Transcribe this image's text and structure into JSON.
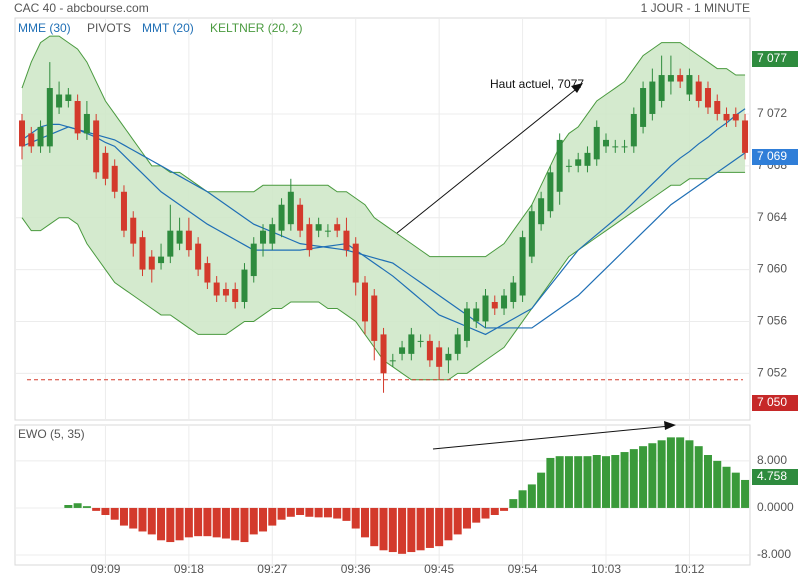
{
  "chart_data": [
    {
      "type": "candlestick",
      "title": "CAC 40 - abcbourse.com",
      "timeframe": "1 JOUR - 1 MINUTE",
      "pivots_label": "PIVOTS",
      "annotation": "Haut actuel, 7077",
      "high_badge": "7 077",
      "last_badge": "7 069",
      "low_badge": "7 050",
      "up_color": "#2e8b3e",
      "down_color": "#d33a2c",
      "categories": [
        null,
        null,
        null,
        null,
        null,
        null,
        null,
        null,
        null,
        "09:09",
        null,
        null,
        null,
        null,
        null,
        null,
        null,
        null,
        "09:18",
        null,
        null,
        null,
        null,
        null,
        null,
        null,
        null,
        "09:27",
        null,
        null,
        null,
        null,
        null,
        null,
        null,
        null,
        "09:36",
        null,
        null,
        null,
        null,
        null,
        null,
        null,
        null,
        "09:45",
        null,
        null,
        null,
        null,
        null,
        null,
        null,
        null,
        "09:54",
        null,
        null,
        null,
        null,
        null,
        null,
        null,
        null,
        "10:03",
        null,
        null,
        null,
        null,
        null,
        null,
        null,
        null,
        "10:12",
        null,
        null,
        null,
        null,
        null,
        null
      ],
      "open": [
        7071.5,
        7070.5,
        7069.5,
        7069.5,
        7072.5,
        7073,
        7073,
        7070.5,
        7071.5,
        7069,
        7068,
        7066,
        7064,
        7062.5,
        7061,
        7060.5,
        7061,
        7062,
        7063,
        7062,
        7060.5,
        7059,
        7058.5,
        7058.5,
        7057.5,
        7059.5,
        7062,
        7062,
        7063,
        7063.5,
        7065,
        7063.5,
        7063,
        7063,
        7063.5,
        7063,
        7062,
        7059,
        7058,
        7055,
        7053,
        7053.5,
        7053.5,
        7054.5,
        7054.5,
        7054,
        7053,
        7053.5,
        7054.5,
        7056,
        7056,
        7057.5,
        7057,
        7057.5,
        7058,
        7061,
        7063.5,
        7064.5,
        7066,
        7068,
        7068,
        7068,
        7068.5,
        7069.5,
        7069.5,
        7069.5,
        7069.5,
        7071,
        7072,
        7073,
        7074.5,
        7075,
        7073.5,
        7074.5,
        7074,
        7073,
        7072,
        7072,
        7071.5
      ],
      "high": [
        7072,
        7071,
        7071.5,
        7076,
        7074.5,
        7074,
        7073.5,
        7073,
        7072,
        7069.5,
        7068.5,
        7066.5,
        7064.5,
        7063,
        7061.5,
        7062,
        7065,
        7064,
        7064,
        7062.5,
        7061,
        7059.5,
        7059,
        7059,
        7060.5,
        7062.5,
        7063.5,
        7064,
        7065.5,
        7067,
        7065.5,
        7064,
        7064,
        7063.5,
        7064,
        7064,
        7062.5,
        7059.5,
        7058.5,
        7055.5,
        7053.5,
        7054.5,
        7055.5,
        7055,
        7055,
        7054.5,
        7054,
        7055.5,
        7057.5,
        7057.5,
        7058.5,
        7058,
        7058.5,
        7059.5,
        7063,
        7065,
        7066,
        7068,
        7070.5,
        7068.5,
        7069,
        7069.5,
        7071.5,
        7070.5,
        7070,
        7070,
        7072.5,
        7074.5,
        7075.5,
        7076.5,
        7076.5,
        7075.5,
        7075.5,
        7075,
        7074.5,
        7073.5,
        7072.5,
        7072.5,
        7072
      ],
      "low": [
        7068.5,
        7069,
        7069,
        7069,
        7072,
        7072.5,
        7070,
        7070,
        7067,
        7066.5,
        7065.5,
        7062.5,
        7061,
        7059.5,
        7059,
        7060,
        7060.5,
        7061.5,
        7061,
        7059.5,
        7058.5,
        7057.5,
        7057.5,
        7057,
        7057,
        7059,
        7061,
        7061.5,
        7062.5,
        7063,
        7062.5,
        7061,
        7062.5,
        7062.5,
        7062.5,
        7061,
        7058,
        7055,
        7053,
        7050.5,
        7052.5,
        7053,
        7053,
        7054,
        7052.5,
        7051.5,
        7052,
        7053,
        7054,
        7055.5,
        7055.5,
        7056.5,
        7056.5,
        7057,
        7057.5,
        7060.5,
        7063,
        7064,
        7065,
        7067.5,
        7067.5,
        7067.5,
        7068,
        7069,
        7069,
        7069,
        7069,
        7070.5,
        7071.5,
        7072.5,
        7073.5,
        7074,
        7073,
        7072.5,
        7072,
        7071.5,
        7071,
        7071,
        7068.5
      ],
      "close": [
        7069.5,
        7069.5,
        7071,
        7074,
        7073.5,
        7073.5,
        7070.5,
        7072,
        7067.5,
        7067,
        7066,
        7063,
        7062,
        7060,
        7060,
        7061,
        7063,
        7063,
        7061.5,
        7060,
        7059,
        7058,
        7058,
        7057.5,
        7060,
        7062,
        7063,
        7063.5,
        7065,
        7066,
        7063,
        7061.5,
        7063.5,
        7063,
        7063,
        7061.5,
        7059,
        7056,
        7054.5,
        7052,
        7053,
        7054,
        7055,
        7054.5,
        7053,
        7052.5,
        7053.5,
        7055,
        7057,
        7057,
        7058,
        7057,
        7058,
        7059,
        7062.5,
        7064.5,
        7065.5,
        7067.5,
        7070,
        7068,
        7068.5,
        7069,
        7071,
        7070,
        7069.5,
        7069.5,
        7072,
        7074,
        7074.5,
        7075,
        7075,
        7074.5,
        7075,
        7073,
        7072.5,
        7072,
        7071.5,
        7071.5,
        7069
      ],
      "overlays": [
        {
          "name": "MME (30)",
          "color": "#1f6fb5",
          "values": [
            7069.5,
            7069.8,
            7070.1,
            7070.4,
            7070.7,
            7071,
            7070.8,
            7070.6,
            7070.4,
            7070.2,
            7070,
            7069.6,
            7069.2,
            7068.8,
            7068.4,
            7068,
            7067.6,
            7067.2,
            7066.8,
            7066.4,
            7066,
            7065.5,
            7065,
            7064.5,
            7064,
            7063.5,
            7063.2,
            7062.9,
            7062.6,
            7062.3,
            7062,
            7061.9,
            7061.8,
            7061.7,
            7061.6,
            7061.5,
            7061.3,
            7061.1,
            7060.9,
            7060.7,
            7060.5,
            7060,
            7059.5,
            7059,
            7058.5,
            7058,
            7057.5,
            7057,
            7056.5,
            7056,
            7055.5,
            7055.5,
            7055.5,
            7055.5,
            7055.5,
            7055.5,
            7056,
            7056.5,
            7057,
            7057.5,
            7058,
            7058.7,
            7059.4,
            7060.1,
            7060.8,
            7061.5,
            7062.2,
            7062.9,
            7063.6,
            7064.3,
            7065,
            7065.5,
            7066,
            7066.5,
            7067,
            7067.5,
            7068,
            7068.5,
            7069
          ]
        },
        {
          "name": "MMT (20)",
          "color": "#1f6fb5",
          "values": [
            7070,
            7070.5,
            7071,
            7071.2,
            7071.2,
            7071,
            7070.8,
            7070.5,
            7070.2,
            7069.8,
            7069.5,
            7068.8,
            7068.1,
            7067.4,
            7066.7,
            7066,
            7065.5,
            7065,
            7064.5,
            7064,
            7063.5,
            7063.1,
            7062.7,
            7062.3,
            7061.9,
            7061.5,
            7061.5,
            7061.5,
            7061.5,
            7061.5,
            7061.5,
            7061.6,
            7061.7,
            7061.8,
            7061.9,
            7062,
            7061.5,
            7061,
            7060.5,
            7060,
            7059.5,
            7058.9,
            7058.3,
            7057.7,
            7057.1,
            7056.5,
            7056.2,
            7055.9,
            7055.6,
            7055.3,
            7055,
            7055.4,
            7055.8,
            7056.2,
            7056.6,
            7057,
            7057.9,
            7058.8,
            7059.7,
            7060.6,
            7061.5,
            7062.1,
            7062.7,
            7063.3,
            7063.9,
            7064.5,
            7065.2,
            7065.9,
            7066.6,
            7067.3,
            7068,
            7068.6,
            7069.1,
            7069.7,
            7070.2,
            7070.8,
            7071.3,
            7071.9,
            7072.4
          ]
        }
      ],
      "keltner": {
        "name": "KELTNER (20, 2)",
        "color": "#4a9a3f",
        "fill": "#cfe8c9",
        "upper": [
          7074,
          7076,
          7077.5,
          7078,
          7078,
          7077.5,
          7077,
          7076,
          7074.5,
          7073,
          7072,
          7071,
          7070,
          7069,
          7068,
          7068,
          7067.5,
          7067.5,
          7067,
          7066.5,
          7066,
          7066,
          7066,
          7066,
          7066,
          7066,
          7066.5,
          7066.5,
          7066.5,
          7066.5,
          7066.5,
          7066.5,
          7066.5,
          7066.5,
          7066,
          7066,
          7065.5,
          7065,
          7064,
          7063.5,
          7063,
          7062.5,
          7062,
          7061.5,
          7061,
          7061,
          7061,
          7061,
          7061,
          7061,
          7061,
          7061.5,
          7062,
          7063,
          7064,
          7065,
          7066.5,
          7068,
          7069.5,
          7070.5,
          7071,
          7072,
          7073,
          7073.5,
          7074,
          7074.5,
          7075.5,
          7076.5,
          7077,
          7077.5,
          7077.5,
          7077.5,
          7077,
          7076.5,
          7076,
          7075.5,
          7075.5,
          7075,
          7075
        ],
        "lower": [
          7064,
          7063,
          7063,
          7063.5,
          7064,
          7064,
          7063.5,
          7062,
          7061,
          7060,
          7059,
          7058.5,
          7058,
          7057.5,
          7057,
          7056.5,
          7056.5,
          7056,
          7055.5,
          7055,
          7055,
          7055,
          7055,
          7055.5,
          7056,
          7056,
          7056.5,
          7057,
          7057,
          7057.5,
          7057.5,
          7057.5,
          7057.5,
          7057,
          7057,
          7056.5,
          7056,
          7055,
          7054,
          7053,
          7052.5,
          7052,
          7051.5,
          7051.5,
          7051.5,
          7051.5,
          7051.5,
          7052,
          7052,
          7052.5,
          7053,
          7053.5,
          7054,
          7055,
          7056,
          7057,
          7058,
          7059,
          7060,
          7061,
          7061.5,
          7062,
          7062.5,
          7063,
          7063.5,
          7064,
          7064.5,
          7065,
          7065.5,
          7066,
          7066.5,
          7066.5,
          7067,
          7067,
          7067,
          7067.5,
          7067.5,
          7067.5,
          7067.5
        ]
      },
      "support_line": 7051.5,
      "support_color": "#d33a2c",
      "ylim": [
        7048.4,
        7079.4
      ],
      "yticks": [
        {
          "value": 7052,
          "label": "7 052"
        },
        {
          "value": 7056,
          "label": "7 056"
        },
        {
          "value": 7060,
          "label": "7 060"
        },
        {
          "value": 7064,
          "label": "7 064"
        },
        {
          "value": 7068,
          "label": "7 068"
        },
        {
          "value": 7072,
          "label": "7 072"
        }
      ],
      "grid": true
    },
    {
      "type": "bar",
      "title": "EWO (5, 35)",
      "up_color": "#3a9a3a",
      "down_color": "#d33a2c",
      "values": [
        null,
        null,
        null,
        null,
        null,
        0.5,
        0.8,
        0.3,
        -0.5,
        -1.2,
        -2,
        -3,
        -3.5,
        -4,
        -4.5,
        -5.5,
        -5.8,
        -5.5,
        -5,
        -4.8,
        -4.8,
        -5,
        -5.2,
        -5.5,
        -5.8,
        -4.5,
        -4,
        -3,
        -2,
        -1.5,
        -1.2,
        -1.5,
        -1.6,
        -1.6,
        -1.8,
        -2.2,
        -3.5,
        -5,
        -6.5,
        -7.2,
        -7.5,
        -7.8,
        -7.5,
        -7.2,
        -6.8,
        -6.5,
        -5.5,
        -4.5,
        -3.5,
        -2.5,
        -1.8,
        -1.2,
        -0.5,
        1.5,
        3,
        4,
        6,
        8.5,
        8.8,
        8.8,
        8.8,
        8.8,
        9,
        8.8,
        9,
        9.5,
        10,
        10.5,
        11,
        11.5,
        12,
        12,
        11.5,
        10.5,
        9,
        8,
        7,
        6,
        4.758
      ],
      "ylim": [
        -9.7,
        14.1
      ],
      "yticks": [
        {
          "value": 8,
          "label": "8.000"
        },
        {
          "value": 0,
          "label": "0.0000"
        },
        {
          "value": -8,
          "label": "-8.000"
        }
      ],
      "grid": true
    }
  ]
}
